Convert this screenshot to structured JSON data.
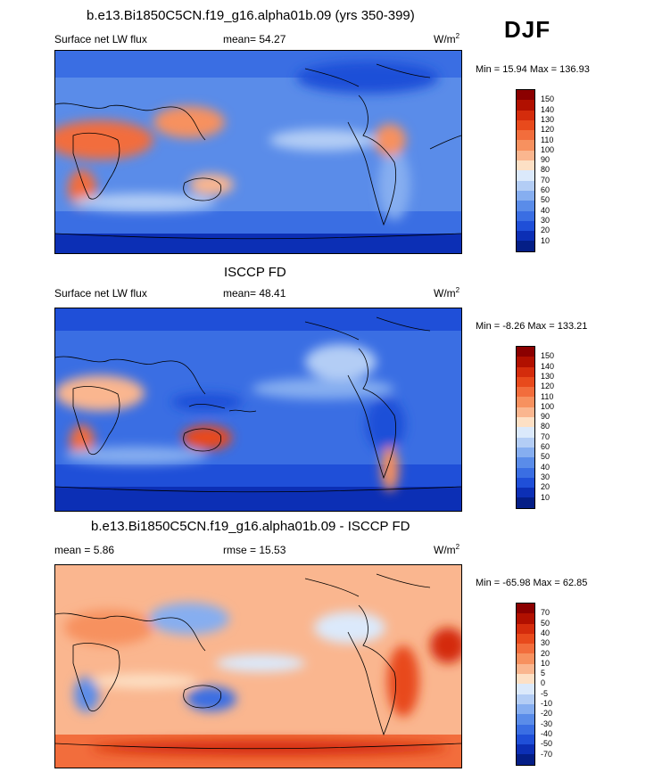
{
  "season": "DJF",
  "panels": [
    {
      "title": "b.e13.Bi1850C5CN.f19_g16.alpha01b.09 (yrs 350-399)",
      "left_label": "Surface net LW flux",
      "center_label": "mean=  54.27",
      "units_base": "W/m",
      "units_exp": "2",
      "minmax": "Min =  15.94 Max = 136.93",
      "colorbar": {
        "labels": [
          "150",
          "140",
          "130",
          "120",
          "110",
          "100",
          "90",
          "80",
          "70",
          "60",
          "50",
          "40",
          "30",
          "20",
          "10"
        ],
        "colors": [
          "#8b0000",
          "#b11000",
          "#d42c0c",
          "#e84a1c",
          "#f26d3c",
          "#f7915f",
          "#fab68f",
          "#fde0c5",
          "#dbe9fb",
          "#b3cdf5",
          "#86aef0",
          "#5a8ce9",
          "#3a6ee3",
          "#1f4fd8",
          "#0c2fb5",
          "#041e86"
        ]
      },
      "legend": {
        "wrap": 0.3
      }
    },
    {
      "title": "ISCCP FD",
      "left_label": "Surface net LW flux",
      "center_label": "mean=  48.41",
      "units_base": "W/m",
      "units_exp": "2",
      "minmax": "Min =  -8.26 Max = 133.21",
      "colorbar": {
        "labels": [
          "150",
          "140",
          "130",
          "120",
          "110",
          "100",
          "90",
          "80",
          "70",
          "60",
          "50",
          "40",
          "30",
          "20",
          "10"
        ],
        "colors": [
          "#8b0000",
          "#b11000",
          "#d42c0c",
          "#e84a1c",
          "#f26d3c",
          "#f7915f",
          "#fab68f",
          "#fde0c5",
          "#dbe9fb",
          "#b3cdf5",
          "#86aef0",
          "#5a8ce9",
          "#3a6ee3",
          "#1f4fd8",
          "#0c2fb5",
          "#041e86"
        ]
      },
      "legend": {
        "wrap": 0.3
      }
    },
    {
      "title": "b.e13.Bi1850C5CN.f19_g16.alpha01b.09 - ISCCP FD",
      "left_label": "mean =  5.86",
      "center_label": "rmse =  15.53",
      "units_base": "W/m",
      "units_exp": "2",
      "minmax": "Min = -65.98 Max =  62.85",
      "colorbar": {
        "labels": [
          "70",
          "50",
          "40",
          "30",
          "20",
          "10",
          "5",
          "0",
          "-5",
          "-10",
          "-20",
          "-30",
          "-40",
          "-50",
          "-70"
        ],
        "colors": [
          "#8b0000",
          "#b11000",
          "#d42c0c",
          "#e84a1c",
          "#f26d3c",
          "#f7915f",
          "#fab68f",
          "#fde0c5",
          "#dbe9fb",
          "#b3cdf5",
          "#86aef0",
          "#5a8ce9",
          "#3a6ee3",
          "#1f4fd8",
          "#0c2fb5",
          "#041e86"
        ]
      },
      "legend": {
        "wrap": 0.3
      }
    }
  ]
}
